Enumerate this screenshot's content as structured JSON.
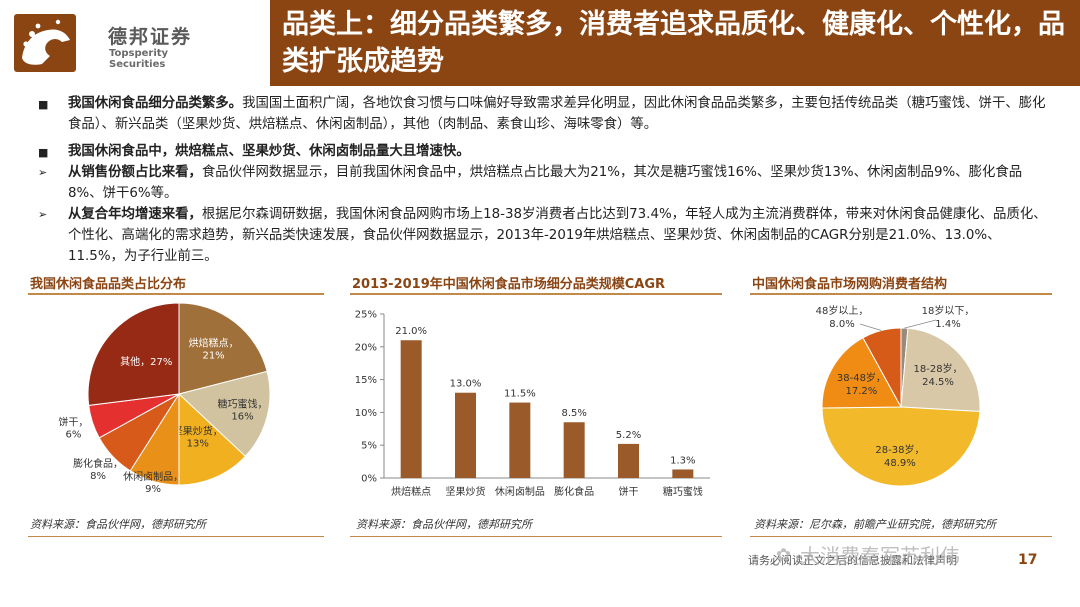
{
  "logo": {
    "name_cn": "德邦证券",
    "name_en": "Topsperity Securities"
  },
  "title": "品类上：细分品类繁多，消费者追求品质化、健康化、个性化，品类扩张成趋势",
  "bullets": [
    {
      "marker": "■",
      "lead": "我国休闲食品细分品类繁多。",
      "text": "我国国土面积广阔，各地饮食习惯与口味偏好导致需求差异化明显，因此休闲食品品类繁多，主要包括传统品类（糖巧蜜饯、饼干、膨化食品）、新兴品类（坚果炒货、烘焙糕点、休闲卤制品），其他（肉制品、素食山珍、海味零食）等。"
    },
    {
      "marker": "■",
      "lead": "我国休闲食品中，烘焙糕点、坚果炒货、休闲卤制品量大且增速快。",
      "text": ""
    },
    {
      "marker": "➢",
      "lead": "从销售份额占比来看，",
      "text": "食品伙伴网数据显示，目前我国休闲食品中，烘焙糕点占比最大为21%，其次是糖巧蜜饯16%、坚果炒货13%、休闲卤制品9%、膨化食品8%、饼干6%等。"
    },
    {
      "marker": "➢",
      "lead": "从复合年均增速来看，",
      "text": "根据尼尔森调研数据，我国休闲食品网购市场上18-38岁消费者占比达到73.4%，年轻人成为主流消费群体，带来对休闲食品健康化、品质化、个性化、高端化的需求趋势，新兴品类快速发展，食品伙伴网数据显示，2013年-2019年烘焙糕点、坚果炒货、休闲卤制品的CAGR分别是21.0%、13.0%、11.5%，为子行业前三。"
    }
  ],
  "charts_meta": [
    {
      "heading": "我国休闲食品品类占比分布",
      "source": "资料来源：食品伙伴网，德邦研究所"
    },
    {
      "heading": "2013-2019年中国休闲食品市场细分品类规模CAGR",
      "source": "资料来源：食品伙伴网，德邦研究所"
    },
    {
      "heading": "中国休闲食品市场网购消费者结构",
      "source": "资料来源：尼尔森，前瞻产业研究院，德邦研究所"
    }
  ],
  "chart_data": [
    {
      "type": "pie",
      "title": "我国休闲食品品类占比分布",
      "slices": [
        {
          "label": "烘焙糕点，21%",
          "value": 21,
          "color": "#a0703a"
        },
        {
          "label": "糖巧蜜饯，16%",
          "value": 16,
          "color": "#d2c3a0"
        },
        {
          "label": "坚果炒货，13%",
          "value": 13,
          "color": "#f0b020"
        },
        {
          "label": "休闲卤制品，9%",
          "value": 9,
          "color": "#e89018"
        },
        {
          "label": "膨化食品，8%",
          "value": 8,
          "color": "#d85a1a"
        },
        {
          "label": "饼干，6%",
          "value": 6,
          "color": "#e53030"
        },
        {
          "label": "其他，27%",
          "value": 27,
          "color": "#962a14"
        }
      ]
    },
    {
      "type": "bar",
      "title": "2013-2019年中国休闲食品市场细分品类规模CAGR",
      "categories": [
        "烘焙糕点",
        "坚果炒货",
        "休闲卤制品",
        "膨化食品",
        "饼干",
        "糖巧蜜饯"
      ],
      "values": [
        21.0,
        13.0,
        11.5,
        8.5,
        5.2,
        1.3
      ],
      "value_labels": [
        "21.0%",
        "13.0%",
        "11.5%",
        "8.5%",
        "5.2%",
        "1.3%"
      ],
      "yticks": [
        "0%",
        "5%",
        "10%",
        "15%",
        "20%",
        "25%"
      ],
      "ylim": [
        0,
        25
      ],
      "bar_color": "#9a5a2a"
    },
    {
      "type": "pie",
      "title": "中国休闲食品市场网购消费者结构",
      "slices": [
        {
          "label": "18岁以下，1.4%",
          "value": 1.4,
          "color": "#9a8a7a"
        },
        {
          "label": "18-28岁，24.5%",
          "value": 24.5,
          "color": "#d8c8a8"
        },
        {
          "label": "28-38岁，48.9%",
          "value": 48.9,
          "color": "#f2b92a"
        },
        {
          "label": "38-48岁，17.2%",
          "value": 17.2,
          "color": "#f08c14"
        },
        {
          "label": "48岁以上，8.0%",
          "value": 8.0,
          "color": "#d65a18"
        }
      ]
    }
  ],
  "footer": {
    "disclaimer": "请务必阅读正文之后的信息披露和法律声明",
    "page": "17",
    "watermark": "大消费秦军苏利伟"
  },
  "colors": {
    "brand": "#8b4513",
    "accent": "#c28a4a"
  }
}
